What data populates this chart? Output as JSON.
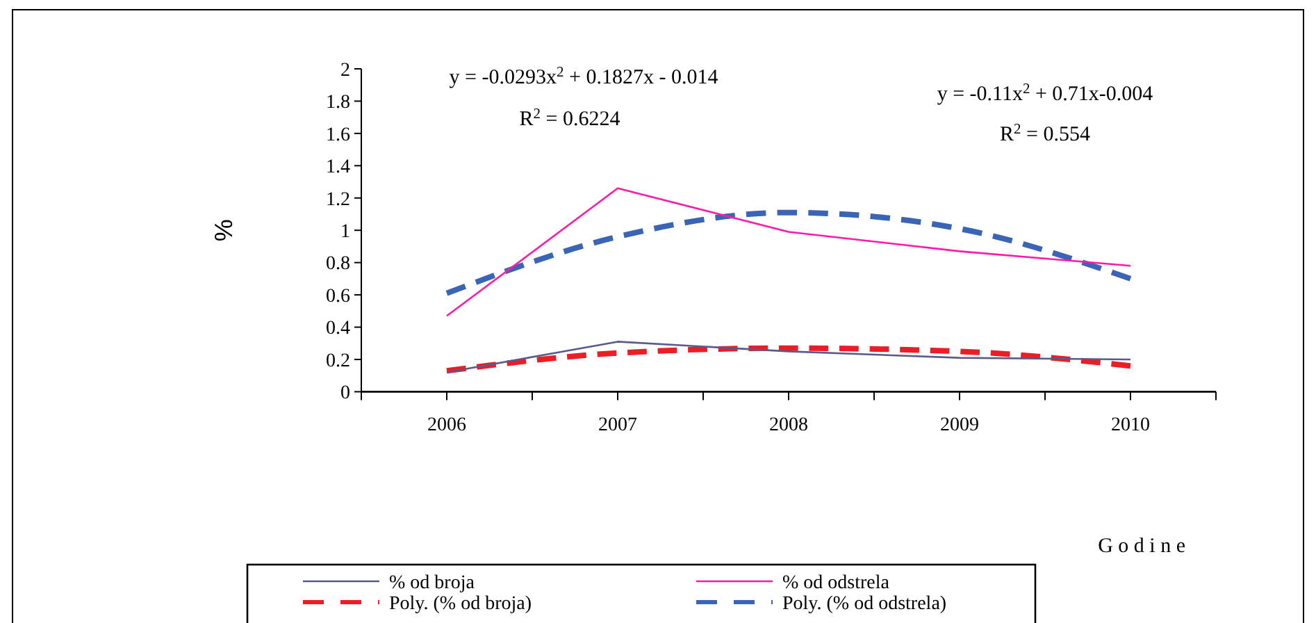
{
  "chart_data": {
    "type": "line",
    "ylabel": "%",
    "xlabel": "G o d i n e",
    "categories": [
      "2006",
      "2007",
      "2008",
      "2009",
      "2010"
    ],
    "series": [
      {
        "name": "% od broja",
        "color": "#5a5a8a",
        "values": [
          0.12,
          0.31,
          0.25,
          0.21,
          0.2
        ],
        "line_style": "solid"
      },
      {
        "name": "% od odstrela",
        "color": "#ff1aa8",
        "values": [
          0.47,
          1.26,
          0.99,
          0.87,
          0.78
        ],
        "line_style": "solid"
      },
      {
        "name": "Poly. (% od broja)",
        "color": "#ee1c24",
        "values": [
          0.13,
          0.24,
          0.27,
          0.25,
          0.16
        ],
        "line_style": "dashed"
      },
      {
        "name": "Poly. (% od odstrela)",
        "color": "#3a64b4",
        "values": [
          0.61,
          0.96,
          1.11,
          1.01,
          0.7
        ],
        "line_style": "dashed"
      }
    ],
    "ylim": [
      0,
      2
    ],
    "yticks": [
      {
        "value": 0,
        "label": "0"
      },
      {
        "value": 0.2,
        "label": "0.2"
      },
      {
        "value": 0.4,
        "label": "0.4"
      },
      {
        "value": 0.6,
        "label": "0.6"
      },
      {
        "value": 0.8,
        "label": "0.8"
      },
      {
        "value": 1,
        "label": "1"
      },
      {
        "value": 1.2,
        "label": "1.2"
      },
      {
        "value": 1.4,
        "label": "1.4"
      },
      {
        "value": 1.6,
        "label": "1.6"
      },
      {
        "value": 1.8,
        "label": "1.8"
      },
      {
        "value": 2,
        "label": "2"
      }
    ],
    "grid": false,
    "legend": "bottom",
    "marker": "none",
    "annotations": [
      "y = -0.0293x$^{2}$ + 0.1827x - 0.014",
      "R$^{2}$ = 0.6224",
      "y = -0.11x$^{2}$ + 0.71x-0.004",
      "R$^{2}$ = 0.554"
    ]
  }
}
